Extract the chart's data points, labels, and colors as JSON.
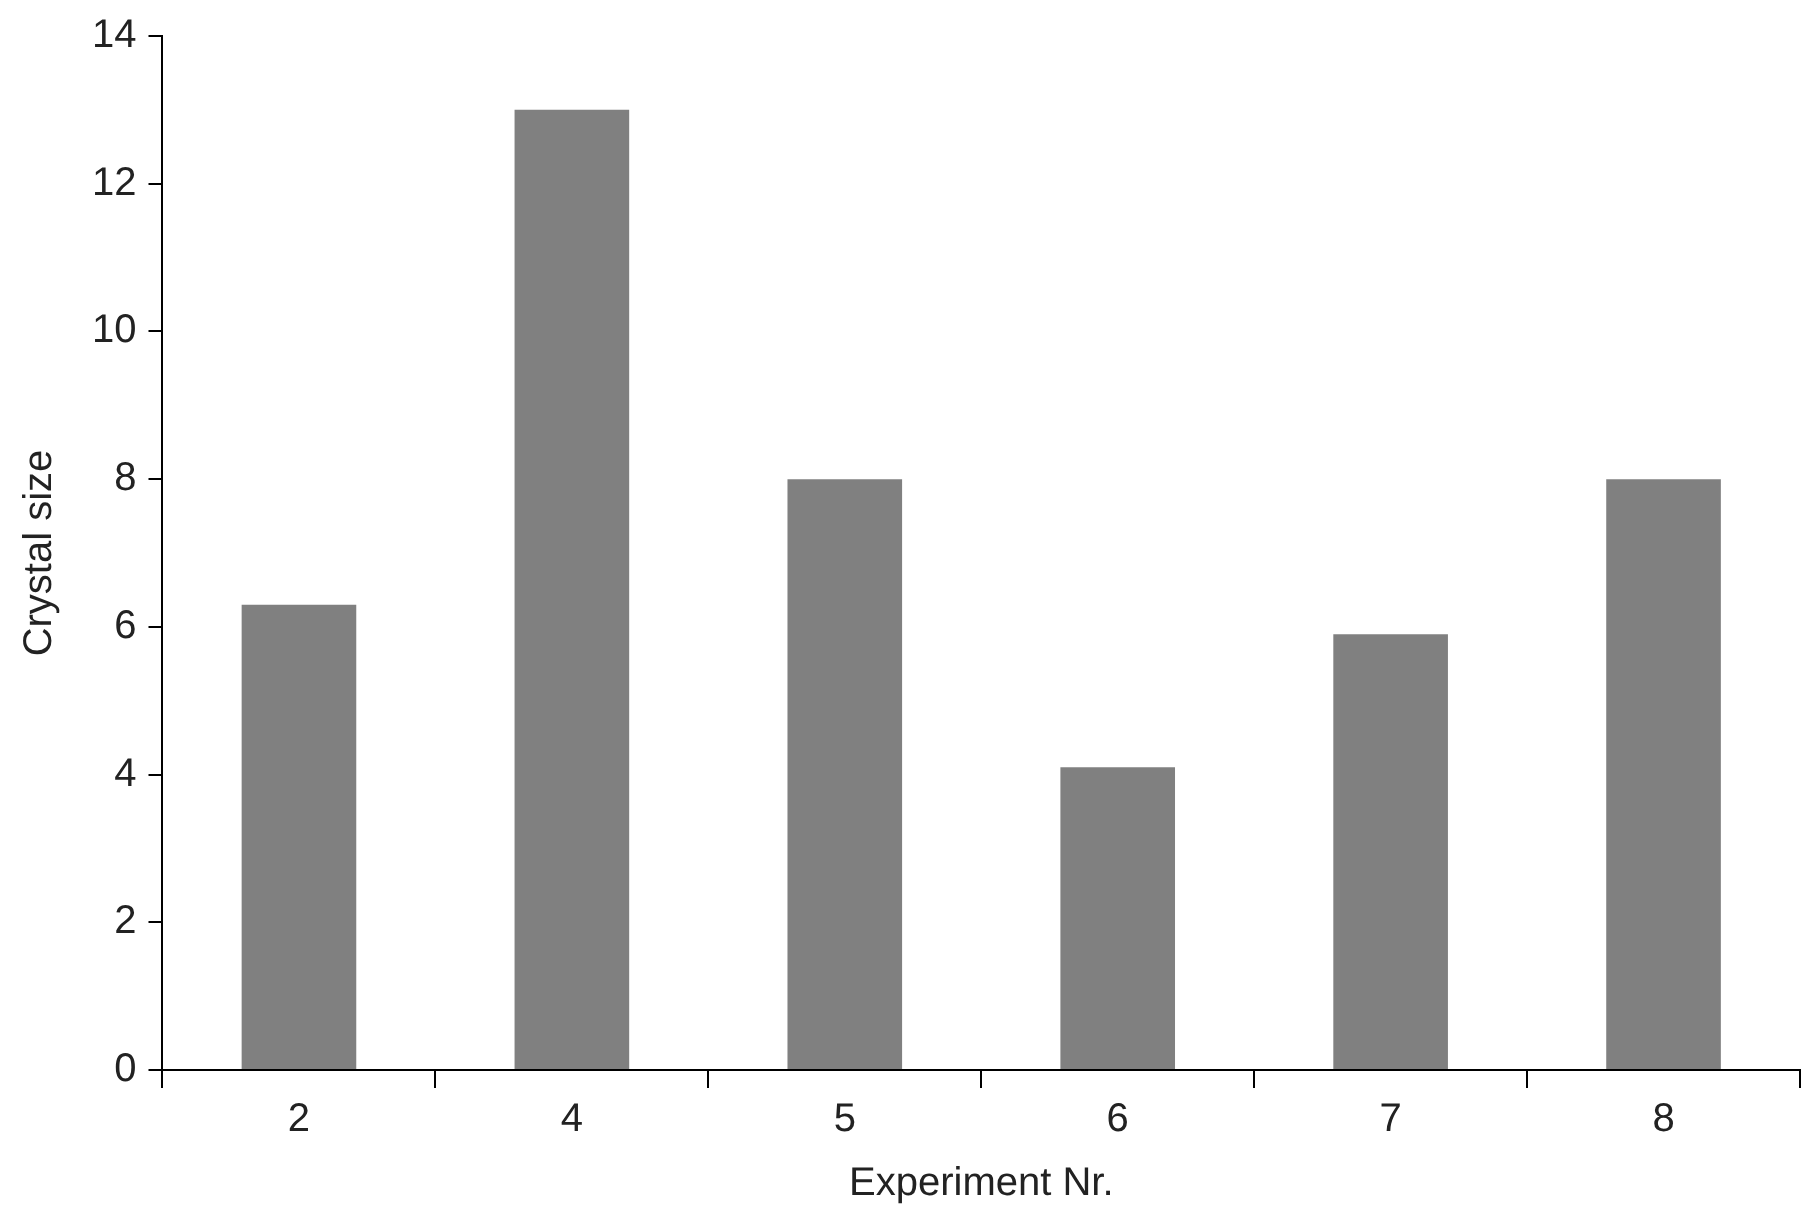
{
  "chart_data": {
    "type": "bar",
    "xlabel": "Experiment Nr.",
    "ylabel": "Crystal size",
    "categories": [
      "2",
      "4",
      "5",
      "6",
      "7",
      "8"
    ],
    "values": [
      6.3,
      13.0,
      8.0,
      4.1,
      5.9,
      8.0
    ],
    "color": "#808080",
    "ylim": [
      0,
      14
    ],
    "yticks": [
      0,
      2,
      4,
      6,
      8,
      10,
      12,
      14
    ],
    "grid": false,
    "legend": false
  }
}
